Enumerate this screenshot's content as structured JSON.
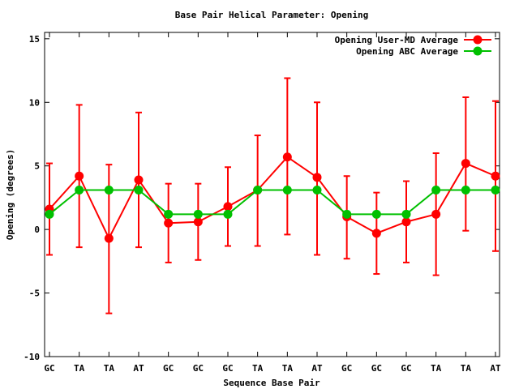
{
  "chart_data": {
    "type": "line",
    "title": "Base Pair Helical Parameter: Opening",
    "xlabel": "Sequence Base Pair",
    "ylabel": "Opening (degrees)",
    "categories": [
      "GC",
      "TA",
      "TA",
      "AT",
      "GC",
      "GC",
      "GC",
      "TA",
      "TA",
      "AT",
      "GC",
      "GC",
      "GC",
      "TA",
      "TA",
      "AT"
    ],
    "ylim": [
      -10,
      15.5
    ],
    "yticks": [
      -10,
      -5,
      0,
      5,
      10,
      15
    ],
    "yticks_labels": [
      "-10",
      "-5",
      "0",
      "5",
      "10",
      "15"
    ],
    "grid": false,
    "legend_position": "top-right",
    "series": [
      {
        "name": "Opening User-MD Average",
        "color": "#ff0000",
        "values": [
          1.6,
          4.2,
          -0.7,
          3.9,
          0.5,
          0.6,
          1.8,
          3.1,
          5.7,
          4.1,
          1.0,
          -0.3,
          0.6,
          1.2,
          5.2,
          4.2
        ],
        "err_low": [
          -2.0,
          -1.4,
          -6.6,
          -1.4,
          -2.6,
          -2.4,
          -1.3,
          -1.3,
          -0.4,
          -2.0,
          -2.3,
          -3.5,
          -2.6,
          -3.6,
          -0.1,
          -1.7
        ],
        "err_high": [
          5.2,
          9.8,
          5.1,
          9.2,
          3.6,
          3.6,
          4.9,
          7.4,
          11.9,
          10.0,
          4.2,
          2.9,
          3.8,
          6.0,
          10.4,
          10.1
        ]
      },
      {
        "name": "Opening ABC Average",
        "color": "#00c000",
        "values": [
          1.2,
          3.1,
          3.1,
          3.1,
          1.2,
          1.2,
          1.2,
          3.1,
          3.1,
          3.1,
          1.2,
          1.2,
          1.2,
          3.1,
          3.1,
          3.1
        ]
      }
    ]
  }
}
